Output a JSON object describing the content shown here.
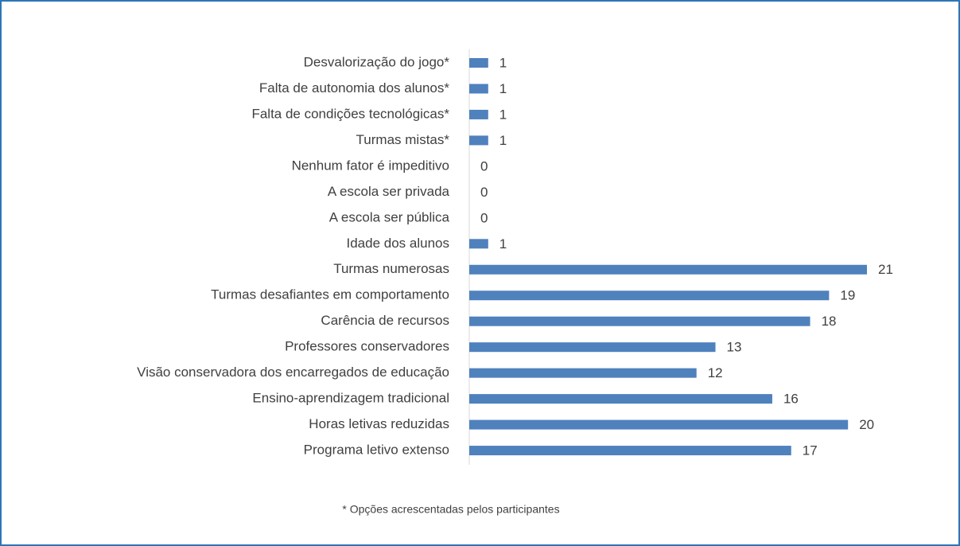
{
  "chart_data": {
    "type": "bar",
    "orientation": "horizontal",
    "categories": [
      "Desvalorização do jogo*",
      "Falta de autonomia dos alunos*",
      "Falta de condições tecnológicas*",
      "Turmas mistas*",
      "Nenhum fator é impeditivo",
      "A escola ser privada",
      "A escola ser pública",
      "Idade dos alunos",
      "Turmas numerosas",
      "Turmas desafiantes em comportamento",
      "Carência de recursos",
      "Professores conservadores",
      "Visão conservadora dos encarregados de educação",
      "Ensino-aprendizagem tradicional",
      "Horas letivas reduzidas",
      "Programa letivo extenso"
    ],
    "values": [
      1,
      1,
      1,
      1,
      0,
      0,
      0,
      1,
      21,
      19,
      18,
      13,
      12,
      16,
      20,
      17
    ],
    "color": "#4f81bd",
    "xlim": [
      0,
      21
    ],
    "annotation": "* Opções acrescentadas pelos participantes"
  }
}
